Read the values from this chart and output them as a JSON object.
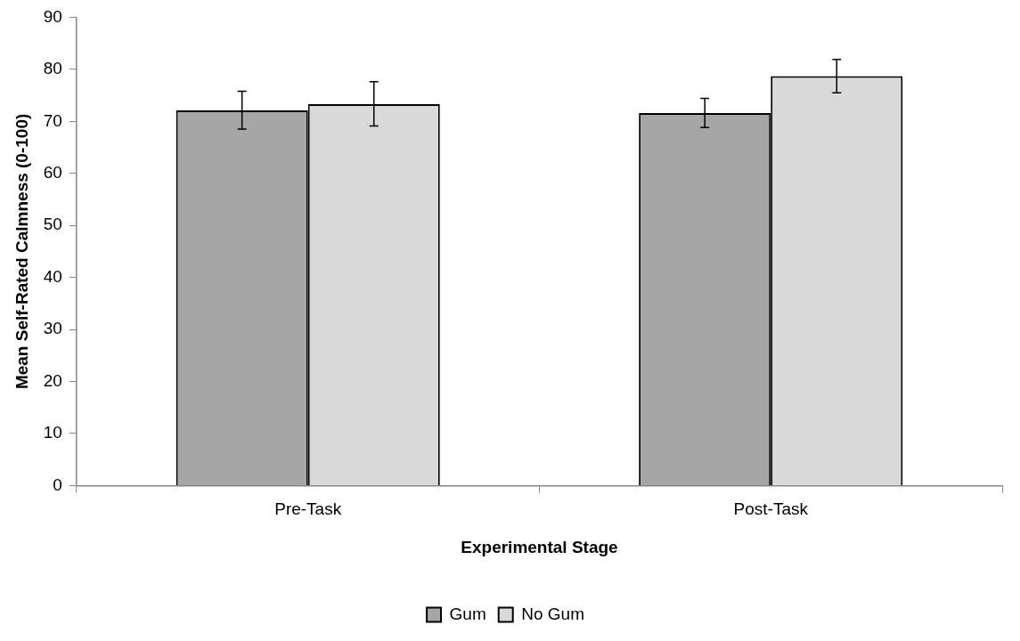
{
  "chart_data": {
    "type": "bar",
    "xlabel": "Experimental Stage",
    "ylabel": "Mean Self-Rated Calmness (0-100)",
    "categories": [
      "Pre-Task",
      "Post-Task"
    ],
    "series": [
      {
        "name": "Gum",
        "color": "#a6a6a6",
        "values": [
          72.1,
          71.6
        ],
        "errors": [
          [
            68.5,
            75.8
          ],
          [
            68.8,
            74.4
          ]
        ]
      },
      {
        "name": "No Gum",
        "color": "#d9d9d9",
        "values": [
          73.3,
          78.7
        ],
        "errors": [
          [
            69.1,
            77.6
          ],
          [
            75.5,
            81.9
          ]
        ]
      }
    ],
    "ylim": [
      0,
      90
    ],
    "yticks": [
      0,
      10,
      20,
      30,
      40,
      50,
      60,
      70,
      80,
      90
    ],
    "grid": false,
    "legend": "bottom"
  }
}
